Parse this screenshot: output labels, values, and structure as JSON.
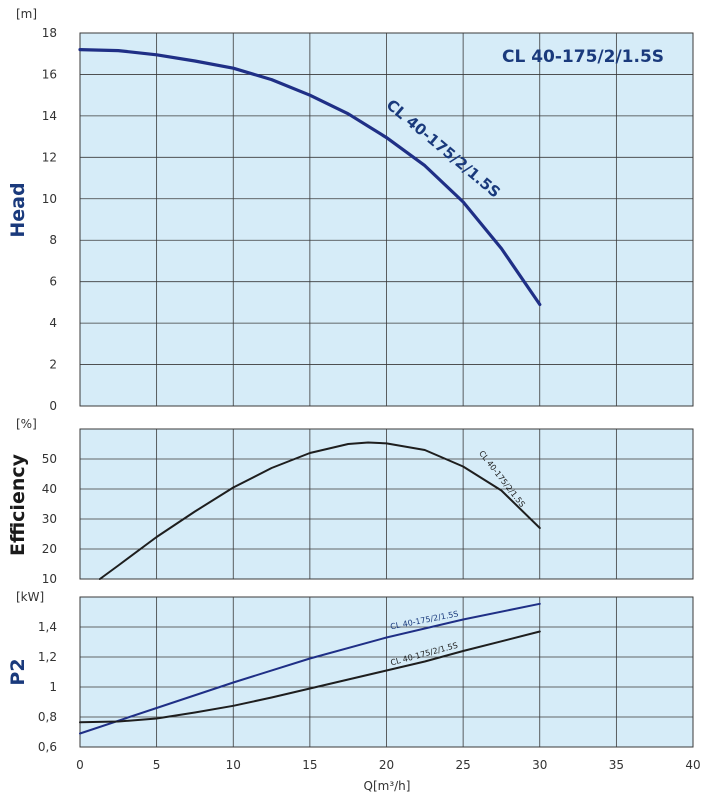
{
  "colors": {
    "panel_bg": "#d6ecf8",
    "grid": "#3a3a3a",
    "head_curve": "#1f2f86",
    "label_blue": "#1a3a7c",
    "black_curve": "#1e1e1e"
  },
  "chart_data": [
    {
      "type": "line",
      "ylabel": "Head",
      "unit": "[m]",
      "title": "CL 40-175/2/1.5S",
      "xlim": [
        0,
        40
      ],
      "ylim": [
        0,
        18
      ],
      "x_ticks": [
        "0",
        "5",
        "10",
        "15",
        "20",
        "25",
        "30",
        "35",
        "40"
      ],
      "y_ticks": [
        "0",
        "2",
        "4",
        "6",
        "8",
        "10",
        "12",
        "14",
        "16",
        "18"
      ],
      "grid": true,
      "series": [
        {
          "name": "CL 40-175/2/1.5S",
          "color": "#1f2f86",
          "x": [
            0,
            2.5,
            5,
            7.5,
            10,
            12.5,
            15,
            17.5,
            20,
            22.5,
            25,
            27.5,
            30
          ],
          "y": [
            17.2,
            17.15,
            16.95,
            16.65,
            16.3,
            15.75,
            15.0,
            14.1,
            12.95,
            11.6,
            9.85,
            7.6,
            4.9
          ]
        }
      ]
    },
    {
      "type": "line",
      "ylabel": "Efficiency",
      "unit": "[%]",
      "xlim": [
        0,
        40
      ],
      "ylim": [
        10,
        60
      ],
      "y_ticks": [
        "10",
        "20",
        "30",
        "40",
        "50"
      ],
      "grid": true,
      "series": [
        {
          "name": "CL 40-175/2/1.5S",
          "color": "#1e1e1e",
          "x": [
            1.3,
            2.5,
            5,
            7.5,
            10,
            12.5,
            15,
            17.5,
            18.8,
            20,
            22.5,
            25,
            27.5,
            30
          ],
          "y": [
            10,
            14.5,
            24,
            32.5,
            40.5,
            47,
            52,
            55,
            55.5,
            55.2,
            53,
            47.5,
            39.5,
            27
          ]
        }
      ]
    },
    {
      "type": "line",
      "ylabel": "P2",
      "unit": "[kW]",
      "xlabel": "Q[m³/h]",
      "xlim": [
        0,
        40
      ],
      "ylim": [
        0.6,
        1.6
      ],
      "y_ticks": [
        "0,6",
        "0,8",
        "1",
        "1,2",
        "1,4"
      ],
      "grid": true,
      "series": [
        {
          "name": "CL 40-175/2/1.5S",
          "color": "#1f2f86",
          "x": [
            0,
            5,
            10,
            15,
            20,
            25,
            30
          ],
          "y": [
            0.69,
            0.86,
            1.03,
            1.19,
            1.33,
            1.45,
            1.555
          ]
        },
        {
          "name": "CL 40-175/2/1.5S",
          "color": "#1e1e1e",
          "x": [
            0,
            2.5,
            5,
            7.5,
            10,
            12.5,
            15,
            17.5,
            20,
            22.5,
            25,
            27.5,
            30
          ],
          "y": [
            0.765,
            0.77,
            0.79,
            0.83,
            0.875,
            0.93,
            0.99,
            1.05,
            1.11,
            1.17,
            1.24,
            1.305,
            1.37
          ]
        }
      ]
    }
  ]
}
